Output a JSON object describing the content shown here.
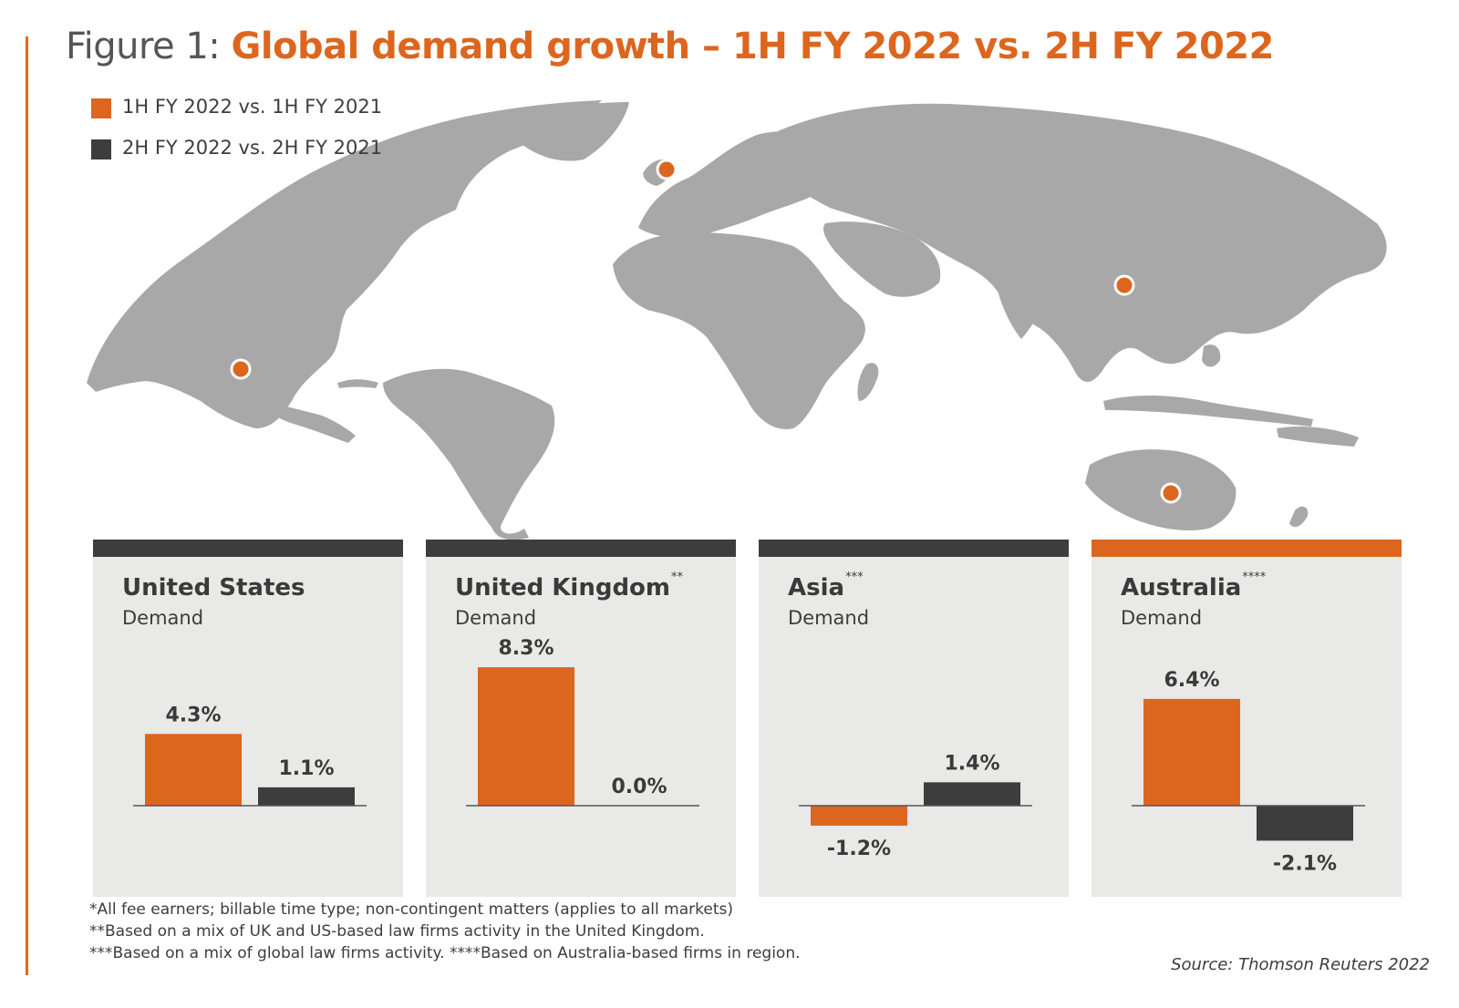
{
  "title_prefix": "Figure 1: ",
  "title_main": "Global demand growth – 1H FY 2022 vs. 2H FY 2022",
  "legend": [
    {
      "label": "1H FY 2022 vs. 1H FY 2021",
      "color": "#dd661f"
    },
    {
      "label": "2H FY 2022 vs. 2H FY 2021",
      "color": "#3d3d3d"
    }
  ],
  "chart_data": {
    "type": "bar",
    "categories": [
      "1H FY 2022 vs. 1H FY 2021",
      "2H FY 2022 vs. 2H FY 2021"
    ],
    "panels": [
      {
        "region": "United States",
        "sup": "",
        "subtitle": "Demand",
        "header_color": "#3d3d3d",
        "values": [
          4.3,
          1.1
        ],
        "labels": [
          "4.3%",
          "1.1%"
        ]
      },
      {
        "region": "United Kingdom",
        "sup": "**",
        "subtitle": "Demand",
        "header_color": "#3d3d3d",
        "values": [
          8.3,
          0.0
        ],
        "labels": [
          "8.3%",
          "0.0%"
        ]
      },
      {
        "region": "Asia",
        "sup": "***",
        "subtitle": "Demand",
        "header_color": "#3d3d3d",
        "values": [
          -1.2,
          1.4
        ],
        "labels": [
          "-1.2%",
          "1.4%"
        ]
      },
      {
        "region": "Australia",
        "sup": "****",
        "subtitle": "Demand",
        "header_color": "#dd661f",
        "values": [
          6.4,
          -2.1
        ],
        "labels": [
          "6.4%",
          "-2.1%"
        ]
      }
    ],
    "colors": [
      "#dd661f",
      "#3d3d3d"
    ]
  },
  "footnotes": [
    "*All fee earners; billable time type; non-contingent matters (applies to all markets)",
    "**Based on a mix of UK and US-based law firms activity in the United Kingdom.",
    "***Based on a mix of global law firms activity. ****Based on Australia-based firms in region."
  ],
  "source": "Source: Thomson Reuters 2022",
  "map_markers": [
    "United States",
    "United Kingdom",
    "Asia",
    "Australia"
  ]
}
